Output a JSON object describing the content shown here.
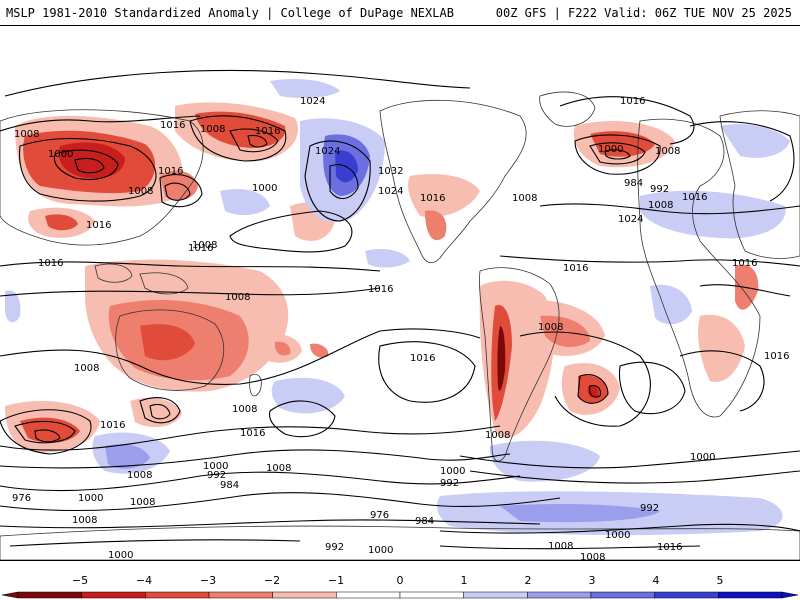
{
  "header": {
    "left_title": "MSLP 1981-2010 Standardized Anomaly | College of DuPage NEXLAB",
    "right_title": "00Z GFS | F222 Valid: 06Z TUE NOV 25 2025"
  },
  "colors": {
    "neg5": "#7a0a0a",
    "neg4": "#c81e1e",
    "neg3": "#e04b3a",
    "neg2": "#ee7f6f",
    "neg1": "#f7bdb0",
    "zero": "#ffffff",
    "pos1": "#c9ccf5",
    "pos2": "#9a9eec",
    "pos3": "#6b6fe0",
    "pos4": "#3a3ed0",
    "pos5": "#1010c0",
    "land": "#ffffff",
    "contour": "#000000",
    "coast": "#333333"
  },
  "colorbar": {
    "ticks": [
      "−5",
      "−4",
      "−3",
      "−2",
      "−1",
      "0",
      "1",
      "2",
      "3",
      "4",
      "5"
    ]
  },
  "isobars": {
    "labels": [
      {
        "text": "1024"
      },
      {
        "text": "1016"
      },
      {
        "text": "1008"
      },
      {
        "text": "1016"
      },
      {
        "text": "1000"
      },
      {
        "text": "1008"
      },
      {
        "text": "1016"
      },
      {
        "text": "1016"
      },
      {
        "text": "1008"
      },
      {
        "text": "1024"
      },
      {
        "text": "1032"
      },
      {
        "text": "1024"
      },
      {
        "text": "1000"
      },
      {
        "text": "1016"
      },
      {
        "text": "1016"
      },
      {
        "text": "1008"
      },
      {
        "text": "1016"
      },
      {
        "text": "1008"
      },
      {
        "text": "1000"
      },
      {
        "text": "1008"
      },
      {
        "text": "984"
      },
      {
        "text": "992"
      },
      {
        "text": "1008"
      },
      {
        "text": "1016"
      },
      {
        "text": "1024"
      },
      {
        "text": "1016"
      },
      {
        "text": "1016"
      },
      {
        "text": "1016"
      },
      {
        "text": "1008"
      },
      {
        "text": "1016"
      },
      {
        "text": "1016"
      },
      {
        "text": "1016"
      },
      {
        "text": "1008"
      },
      {
        "text": "1016"
      },
      {
        "text": "1008"
      },
      {
        "text": "1008"
      },
      {
        "text": "1000"
      },
      {
        "text": "1008"
      },
      {
        "text": "1016"
      },
      {
        "text": "1008"
      },
      {
        "text": "1000"
      },
      {
        "text": "992"
      },
      {
        "text": "984"
      },
      {
        "text": "1000"
      },
      {
        "text": "992"
      },
      {
        "text": "1008"
      },
      {
        "text": "1000"
      },
      {
        "text": "976"
      },
      {
        "text": "984"
      },
      {
        "text": "992"
      },
      {
        "text": "992"
      },
      {
        "text": "1000"
      },
      {
        "text": "1008"
      },
      {
        "text": "1000"
      },
      {
        "text": "1016"
      },
      {
        "text": "1008"
      },
      {
        "text": "976"
      },
      {
        "text": "1008"
      },
      {
        "text": "1008"
      },
      {
        "text": "1000"
      }
    ]
  }
}
